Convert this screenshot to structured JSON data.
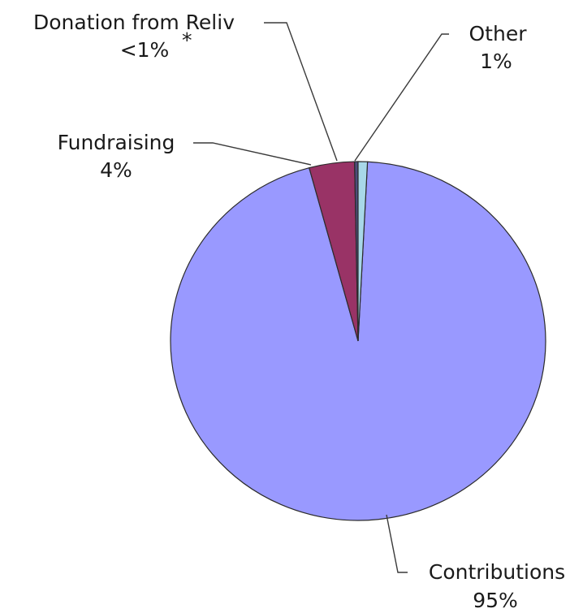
{
  "chart_data": {
    "type": "pie",
    "slices": [
      {
        "name": "Contributions",
        "label": "Contributions",
        "pct_label": "95%",
        "value": 95.0,
        "color": "#9999ff"
      },
      {
        "name": "Donation from Reliv",
        "label": "Donation from Reliv",
        "pct_label": "<1%",
        "value": 0.3,
        "color": "#4c4c7a",
        "note": "*"
      },
      {
        "name": "Fundraising",
        "label": "Fundraising",
        "pct_label": "4%",
        "value": 3.9,
        "color": "#993366"
      },
      {
        "name": "Other",
        "label": "Other",
        "pct_label": "1%",
        "value": 0.8,
        "color": "#a8d8e8"
      }
    ],
    "start_angle_deg": 0,
    "direction": "clockwise",
    "legend": "none"
  }
}
